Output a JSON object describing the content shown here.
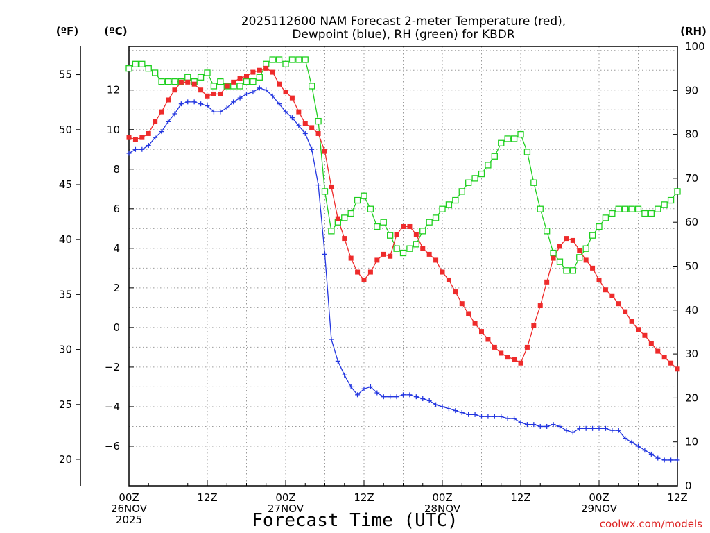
{
  "colors": {
    "temperature": "#ee2b2b",
    "dewpoint": "#2336e0",
    "rh": "#1fcf1f",
    "grid": "#9a9a9a",
    "credit": "#dd2222"
  },
  "chart_data": {
    "type": "line",
    "title": "2025112600 NAM Forecast 2-meter Temperature (red),",
    "subtitle": "Dewpoint (blue), RH (green) for KBDR",
    "xlabel": "Forecast Time (UTC)",
    "credit": "coolwx.com/models",
    "units": {
      "fahrenheit": "(ºF)",
      "celsius": "(ºC)",
      "rh": "(RH)"
    },
    "hours_range": [
      0,
      84
    ],
    "celsius_range": [
      -8,
      14.2
    ],
    "rh_range": [
      0,
      100
    ],
    "fahrenheit_ticks": [
      20,
      25,
      30,
      35,
      40,
      45,
      50,
      55
    ],
    "celsius_ticks": [
      -6,
      -4,
      -2,
      0,
      2,
      4,
      6,
      8,
      10,
      12
    ],
    "rh_ticks": [
      0,
      10,
      20,
      30,
      40,
      50,
      60,
      70,
      80,
      90,
      100
    ],
    "x_ticks": [
      {
        "hour": 0,
        "lines": [
          "00Z",
          "26NOV",
          "2025"
        ]
      },
      {
        "hour": 12,
        "lines": [
          "12Z"
        ]
      },
      {
        "hour": 24,
        "lines": [
          "00Z",
          "27NOV"
        ]
      },
      {
        "hour": 36,
        "lines": [
          "12Z"
        ]
      },
      {
        "hour": 48,
        "lines": [
          "00Z",
          "28NOV"
        ]
      },
      {
        "hour": 60,
        "lines": [
          "12Z"
        ]
      },
      {
        "hour": 72,
        "lines": [
          "00Z",
          "29NOV"
        ]
      },
      {
        "hour": 84,
        "lines": [
          "12Z"
        ]
      }
    ],
    "hours": [
      0,
      1,
      2,
      3,
      4,
      5,
      6,
      7,
      8,
      9,
      10,
      11,
      12,
      13,
      14,
      15,
      16,
      17,
      18,
      19,
      20,
      21,
      22,
      23,
      24,
      25,
      26,
      27,
      28,
      29,
      30,
      31,
      32,
      33,
      34,
      35,
      36,
      37,
      38,
      39,
      40,
      41,
      42,
      43,
      44,
      45,
      46,
      47,
      48,
      49,
      50,
      51,
      52,
      53,
      54,
      55,
      56,
      57,
      58,
      59,
      60,
      61,
      62,
      63,
      64,
      65,
      66,
      67,
      68,
      69,
      70,
      71,
      72,
      73,
      74,
      75,
      76,
      77,
      78,
      79,
      80,
      81,
      82,
      83,
      84
    ],
    "series": [
      {
        "name": "Temperature",
        "units": "C",
        "values": [
          9.6,
          9.5,
          9.6,
          9.8,
          10.4,
          10.9,
          11.5,
          12.0,
          12.4,
          12.4,
          12.3,
          12.0,
          11.7,
          11.8,
          11.8,
          12.2,
          12.4,
          12.6,
          12.7,
          12.9,
          13.0,
          13.1,
          12.9,
          12.3,
          11.9,
          11.6,
          10.9,
          10.3,
          10.1,
          9.8,
          8.9,
          7.1,
          5.5,
          4.5,
          3.5,
          2.8,
          2.4,
          2.8,
          3.4,
          3.7,
          3.6,
          4.7,
          5.1,
          5.1,
          4.7,
          4.0,
          3.7,
          3.4,
          2.8,
          2.4,
          1.8,
          1.2,
          0.7,
          0.2,
          -0.2,
          -0.6,
          -1.0,
          -1.3,
          -1.5,
          -1.6,
          -1.8,
          -1.0,
          0.1,
          1.1,
          2.3,
          3.5,
          4.1,
          4.5,
          4.4,
          3.9,
          3.4,
          3.0,
          2.4,
          1.9,
          1.6,
          1.2,
          0.8,
          0.3,
          -0.1,
          -0.4,
          -0.8,
          -1.2,
          -1.5,
          -1.8,
          -2.1
        ]
      },
      {
        "name": "Dewpoint",
        "units": "C",
        "values": [
          8.8,
          9.0,
          9.0,
          9.2,
          9.6,
          9.9,
          10.4,
          10.8,
          11.3,
          11.4,
          11.4,
          11.3,
          11.2,
          10.9,
          10.9,
          11.1,
          11.4,
          11.6,
          11.8,
          11.9,
          12.1,
          12.0,
          11.7,
          11.3,
          10.9,
          10.6,
          10.2,
          9.8,
          9.0,
          7.2,
          3.7,
          -0.6,
          -1.7,
          -2.4,
          -3.0,
          -3.4,
          -3.1,
          -3.0,
          -3.3,
          -3.5,
          -3.5,
          -3.5,
          -3.4,
          -3.4,
          -3.5,
          -3.6,
          -3.7,
          -3.9,
          -4.0,
          -4.1,
          -4.2,
          -4.3,
          -4.4,
          -4.4,
          -4.5,
          -4.5,
          -4.5,
          -4.5,
          -4.6,
          -4.6,
          -4.8,
          -4.9,
          -4.9,
          -5.0,
          -5.0,
          -4.9,
          -5.0,
          -5.2,
          -5.3,
          -5.1,
          -5.1,
          -5.1,
          -5.1,
          -5.1,
          -5.2,
          -5.2,
          -5.6,
          -5.8,
          -6.0,
          -6.2,
          -6.4,
          -6.6,
          -6.7,
          -6.7,
          -6.7
        ]
      },
      {
        "name": "RH",
        "units": "%",
        "values": [
          95,
          96,
          96,
          95,
          94,
          92,
          92,
          92,
          92,
          93,
          92,
          93,
          94,
          91,
          92,
          91,
          91,
          91,
          92,
          92,
          93,
          96,
          97,
          97,
          96,
          97,
          97,
          97,
          91,
          83,
          67,
          58,
          60,
          61,
          62,
          65,
          66,
          63,
          59,
          60,
          57,
          54,
          53,
          54,
          55,
          58,
          60,
          61,
          63,
          64,
          65,
          67,
          69,
          70,
          71,
          73,
          75,
          78,
          79,
          79,
          80,
          76,
          69,
          63,
          58,
          53,
          51,
          49,
          49,
          52,
          54,
          57,
          59,
          61,
          62,
          63,
          63,
          63,
          63,
          62,
          62,
          63,
          64,
          65,
          67
        ]
      }
    ]
  }
}
